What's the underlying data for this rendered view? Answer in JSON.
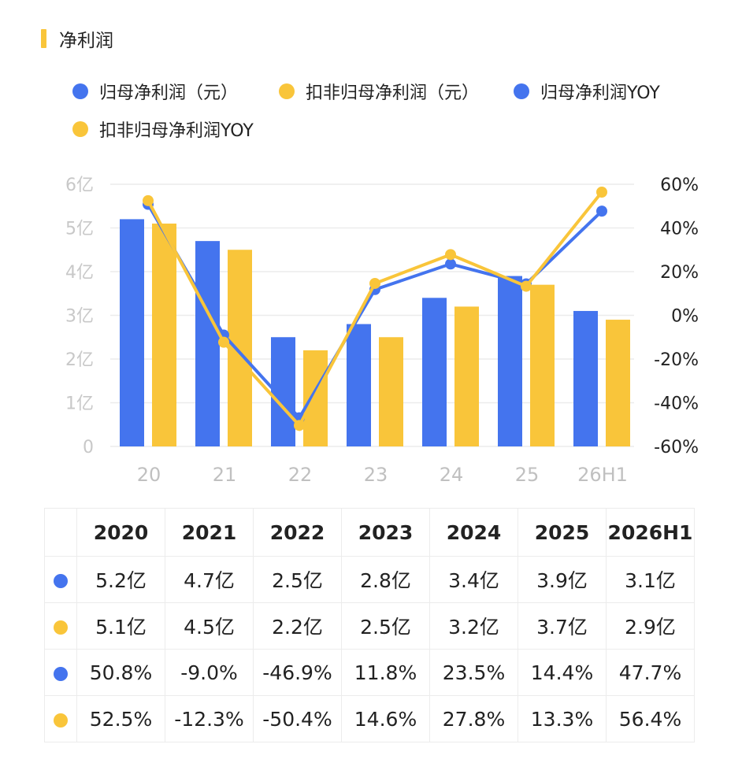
{
  "header": {
    "title": "净利润"
  },
  "colors": {
    "blue": "#4474EE",
    "yellow": "#F9C53A",
    "accent": "#F9C53A"
  },
  "legend": [
    {
      "label": "归母净利润（元）",
      "color": "#4474EE"
    },
    {
      "label": "扣非归母净利润（元）",
      "color": "#F9C53A"
    },
    {
      "label": "归母净利润YOY",
      "color": "#4474EE"
    },
    {
      "label": "扣非归母净利润YOY",
      "color": "#F9C53A"
    }
  ],
  "chart_data": {
    "type": "bar",
    "categories": [
      "20",
      "21",
      "22",
      "23",
      "24",
      "25",
      "26H1"
    ],
    "left_axis": {
      "ticks": [
        "0",
        "1亿",
        "2亿",
        "3亿",
        "4亿",
        "5亿",
        "6亿"
      ],
      "ylim": [
        0,
        6
      ]
    },
    "right_axis": {
      "ticks": [
        "-60%",
        "-40%",
        "-20%",
        "0%",
        "20%",
        "40%",
        "60%"
      ],
      "ylim": [
        -60,
        60
      ]
    },
    "grid": true,
    "series": [
      {
        "name": "归母净利润（元）",
        "type": "bar",
        "axis": "left",
        "color": "#4474EE",
        "values": [
          5.2,
          4.7,
          2.5,
          2.8,
          3.4,
          3.9,
          3.1
        ]
      },
      {
        "name": "扣非归母净利润（元）",
        "type": "bar",
        "axis": "left",
        "color": "#F9C53A",
        "values": [
          5.1,
          4.5,
          2.2,
          2.5,
          3.2,
          3.7,
          2.9
        ]
      },
      {
        "name": "归母净利润YOY",
        "type": "line",
        "axis": "right",
        "color": "#4474EE",
        "values": [
          50.8,
          -9.0,
          -46.9,
          11.8,
          23.5,
          14.4,
          47.7
        ]
      },
      {
        "name": "扣非归母净利润YOY",
        "type": "line",
        "axis": "right",
        "color": "#F9C53A",
        "values": [
          52.5,
          -12.3,
          -50.4,
          14.6,
          27.8,
          13.3,
          56.4
        ]
      }
    ]
  },
  "table": {
    "headers": [
      "2020",
      "2021",
      "2022",
      "2023",
      "2024",
      "2025",
      "2026H1"
    ],
    "rows": [
      {
        "color": "#4474EE",
        "cells": [
          "5.2亿",
          "4.7亿",
          "2.5亿",
          "2.8亿",
          "3.4亿",
          "3.9亿",
          "3.1亿"
        ]
      },
      {
        "color": "#F9C53A",
        "cells": [
          "5.1亿",
          "4.5亿",
          "2.2亿",
          "2.5亿",
          "3.2亿",
          "3.7亿",
          "2.9亿"
        ]
      },
      {
        "color": "#4474EE",
        "cells": [
          "50.8%",
          "-9.0%",
          "-46.9%",
          "11.8%",
          "23.5%",
          "14.4%",
          "47.7%"
        ]
      },
      {
        "color": "#F9C53A",
        "cells": [
          "52.5%",
          "-12.3%",
          "-50.4%",
          "14.6%",
          "27.8%",
          "13.3%",
          "56.4%"
        ]
      }
    ]
  }
}
